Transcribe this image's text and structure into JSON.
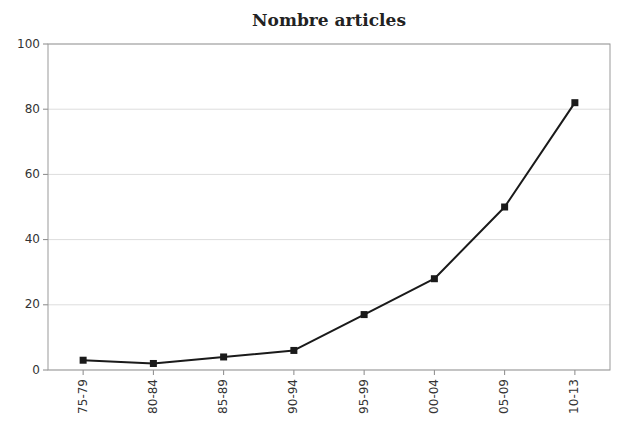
{
  "chart_data": {
    "type": "line",
    "title": "Nombre articles",
    "categories": [
      "75-79",
      "80-84",
      "85-89",
      "90-94",
      "95-99",
      "00-04",
      "05-09",
      "10-13"
    ],
    "values": [
      3,
      2,
      4,
      6,
      17,
      28,
      50,
      82
    ],
    "color": "#1a1a1a",
    "marker": "square",
    "ylim": [
      0,
      100
    ],
    "yticks": [
      0,
      20,
      40,
      60,
      80,
      100
    ],
    "grid": true
  }
}
